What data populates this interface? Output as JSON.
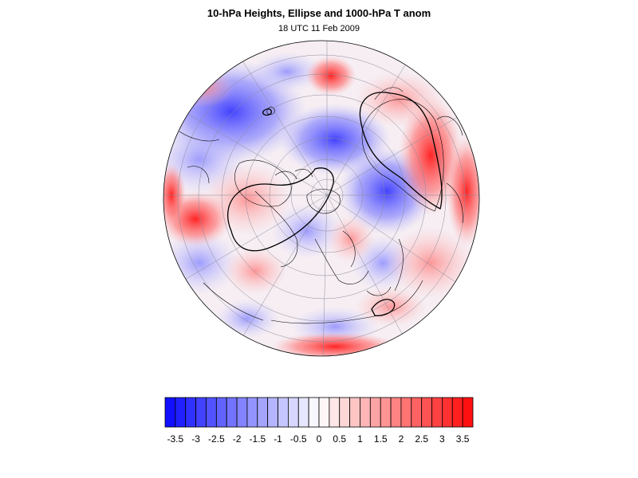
{
  "figure": {
    "title": "10-hPa Heights, Ellipse and 1000-hPa T anom",
    "subtitle": "18 UTC 11 Feb 2009"
  },
  "colorbar": {
    "tick_labels": [
      "-3.5",
      "-3",
      "-2.5",
      "-2",
      "-1.5",
      "-1",
      "-0.5",
      "0",
      "0.5",
      "1",
      "1.5",
      "2",
      "2.5",
      "3",
      "3.5"
    ],
    "levels": [
      -3.75,
      -3.5,
      -3.25,
      -3,
      -2.75,
      -2.5,
      -2.25,
      -2,
      -1.75,
      -1.5,
      -1.25,
      -1,
      -0.75,
      -0.5,
      -0.25,
      0,
      0.25,
      0.5,
      0.75,
      1,
      1.25,
      1.5,
      1.75,
      2,
      2.25,
      2.5,
      2.75,
      3,
      3.25,
      3.5,
      3.75
    ],
    "cold_color": "#1010ff",
    "warm_color": "#ff1010",
    "neutral_color": "#ffffff"
  },
  "map": {
    "projection": "orthographic-north-polar",
    "graticule_lat_step_deg": 10,
    "graticule_lon_step_deg": 30
  }
}
